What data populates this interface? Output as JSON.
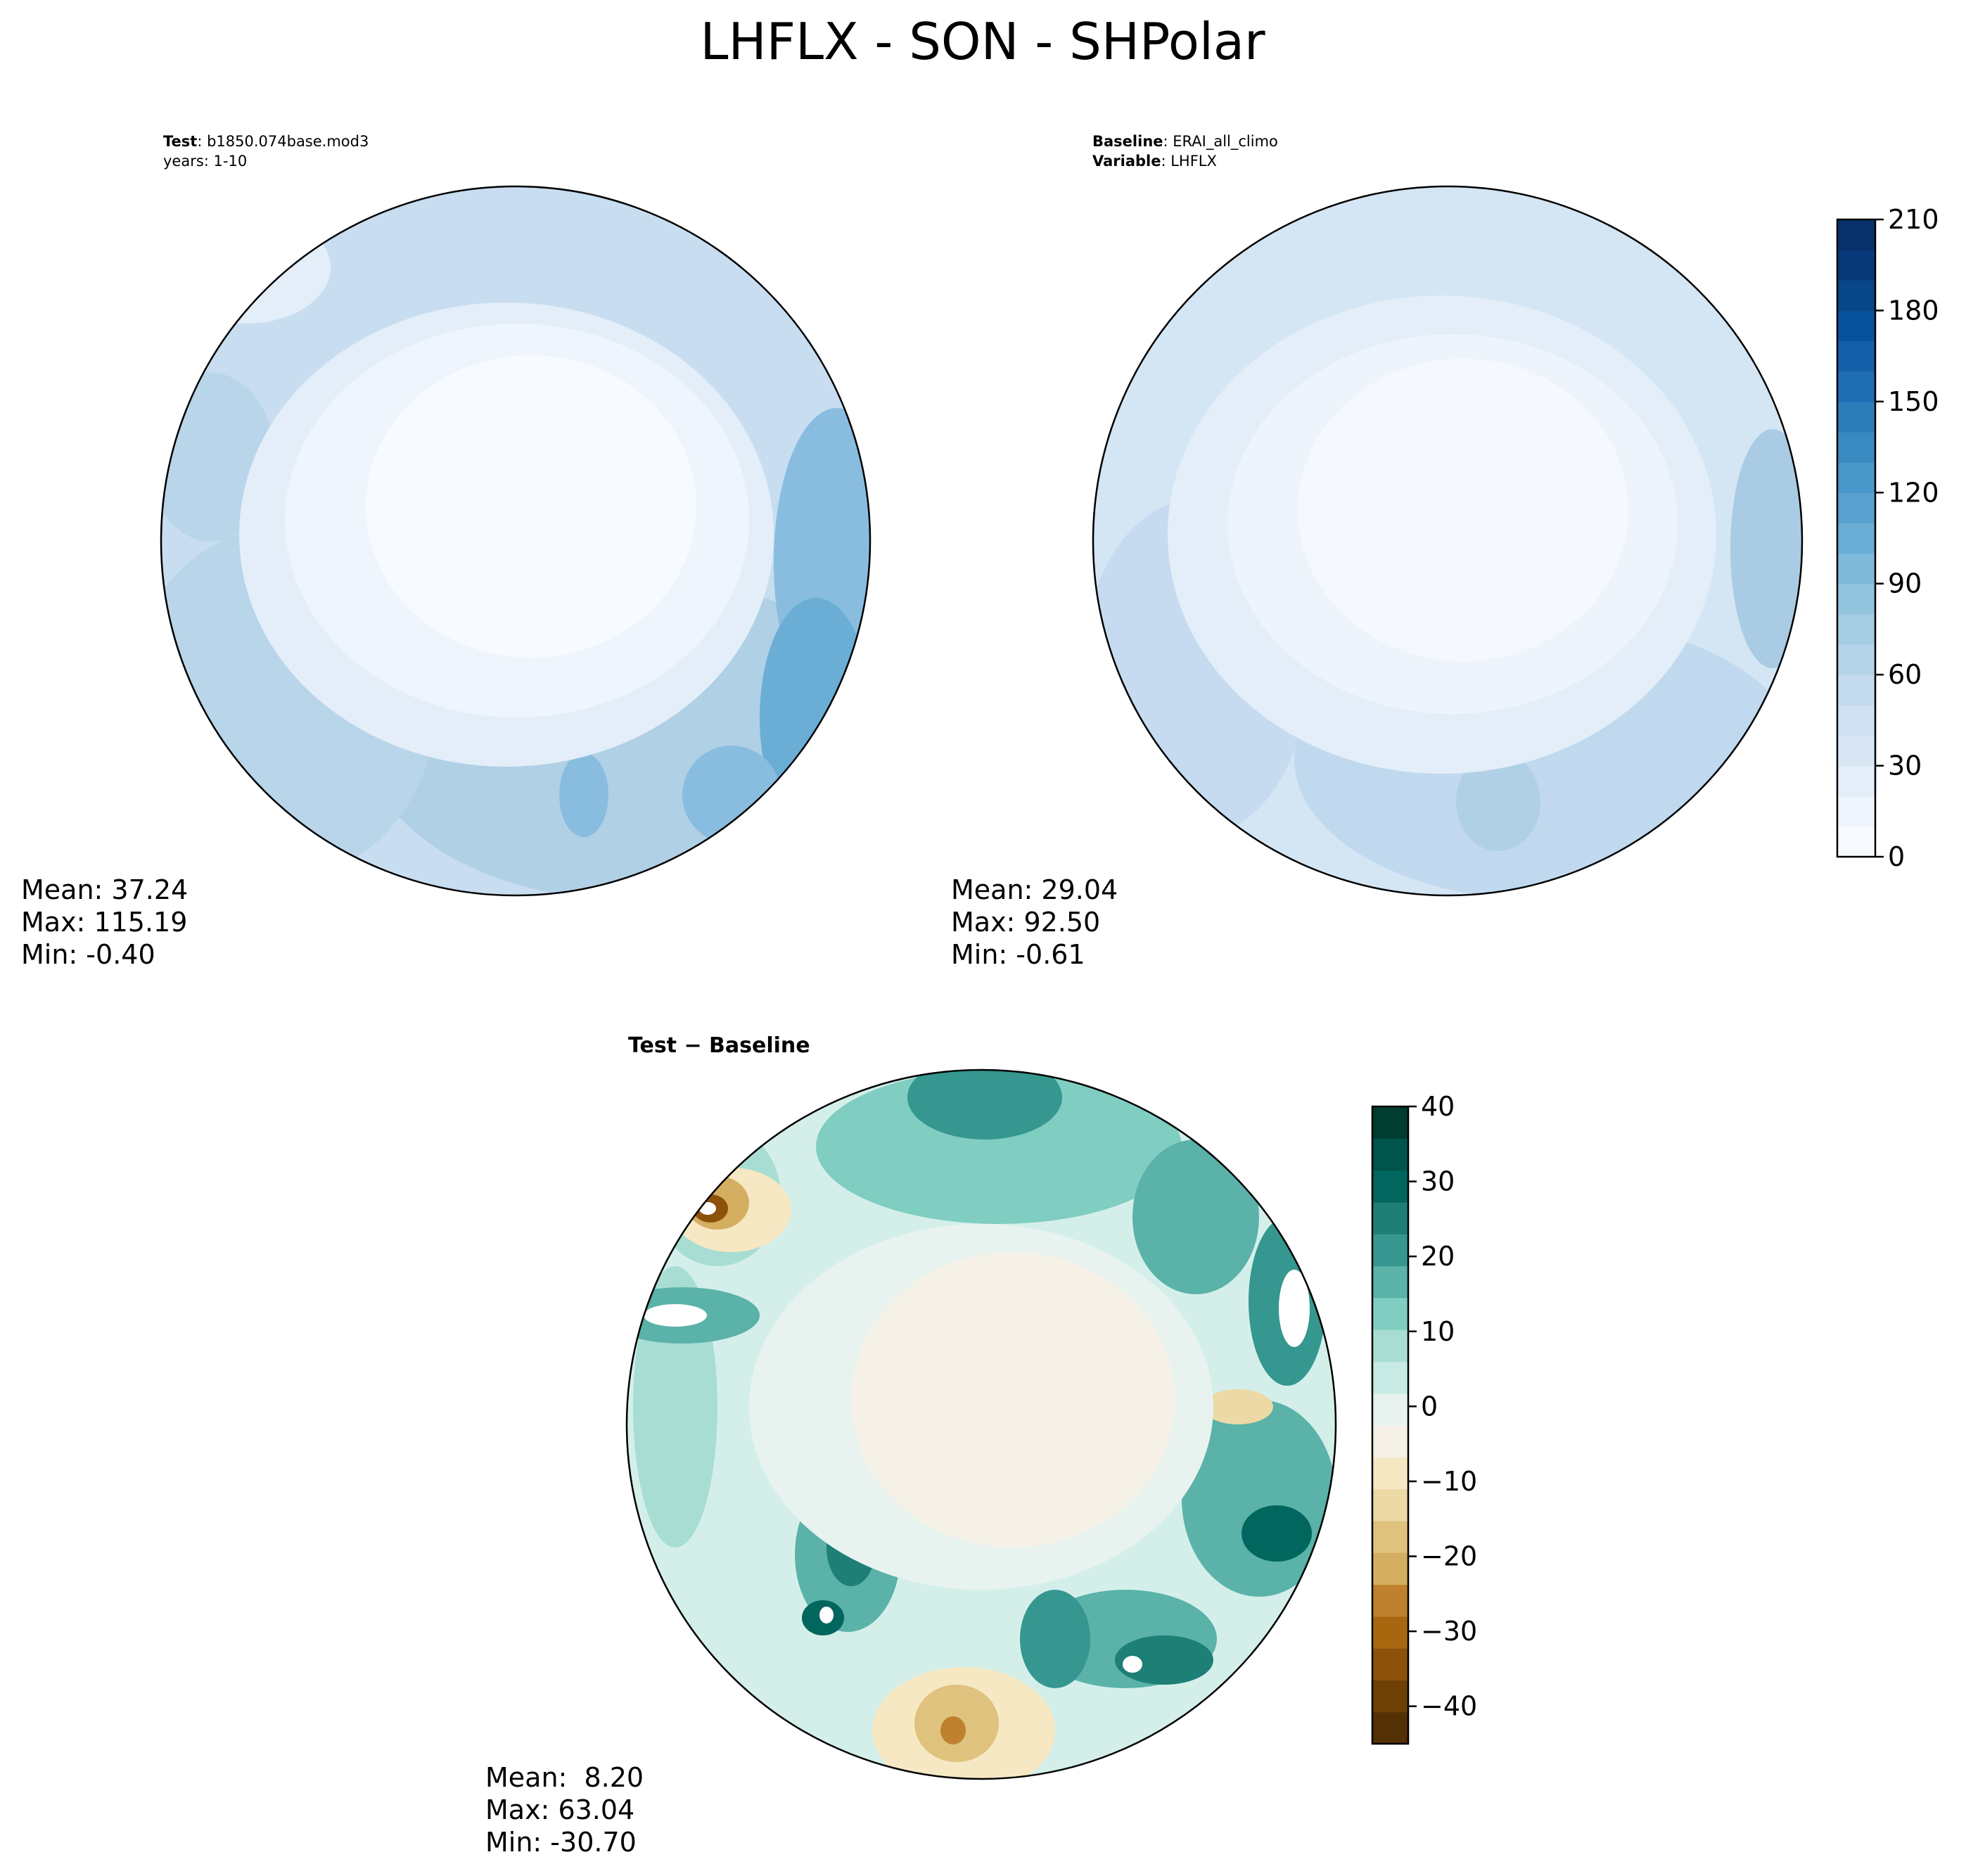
{
  "title": "LHFLX - SON - SHPolar",
  "panels": {
    "test": {
      "header_bold": "Test",
      "header_text": ": b1850.074base.mod3",
      "header_line2": "years: 1-10",
      "stats": {
        "mean": "Mean: 37.24",
        "max": "Max: 115.19",
        "min": "Min: -0.40"
      }
    },
    "baseline": {
      "header_bold": "Baseline",
      "header_text": ": ERAI_all_climo",
      "header_bold2": "Variable",
      "header_text2": ": LHFLX",
      "stats": {
        "mean": "Mean: 29.04",
        "max": "Max: 92.50",
        "min": "Min: -0.61"
      }
    },
    "diff": {
      "header_bold": "Test − Baseline",
      "stats": {
        "mean": "Mean:  8.20",
        "max": "Max: 63.04",
        "min": "Min: -30.70"
      }
    }
  },
  "chart_data": [
    {
      "type": "heatmap",
      "projection": "south polar stereographic",
      "title": "Test: b1850.074base.mod3",
      "colormap": "Blues",
      "colorbar": {
        "ticks": [
          "0",
          "30",
          "60",
          "90",
          "120",
          "150",
          "180",
          "210"
        ],
        "range": [
          0,
          210
        ],
        "levels": 21
      },
      "stats": {
        "mean": 37.24,
        "max": 115.19,
        "min": -0.4
      }
    },
    {
      "type": "heatmap",
      "projection": "south polar stereographic",
      "title": "Baseline: ERAI_all_climo",
      "colormap": "Blues",
      "colorbar": {
        "ticks": [
          "0",
          "30",
          "60",
          "90",
          "120",
          "150",
          "180",
          "210"
        ],
        "range": [
          0,
          210
        ],
        "levels": 21
      },
      "stats": {
        "mean": 29.04,
        "max": 92.5,
        "min": -0.61
      }
    },
    {
      "type": "heatmap",
      "projection": "south polar stereographic",
      "title": "Test − Baseline",
      "colormap": "BrBG",
      "colorbar": {
        "ticks": [
          "40",
          "30",
          "20",
          "10",
          "0",
          "−10",
          "−20",
          "−30",
          "−40"
        ],
        "range": [
          -45,
          40
        ],
        "levels": 17
      },
      "stats": {
        "mean": 8.2,
        "max": 63.04,
        "min": -30.7
      }
    }
  ],
  "colors": {
    "blues": [
      "#f7fbff",
      "#eef5fc",
      "#e3eef9",
      "#d9e7f5",
      "#cfe1f2",
      "#c4daee",
      "#b5d4e9",
      "#a5cce3",
      "#93c4de",
      "#7fb9da",
      "#6aaed6",
      "#59a1cf",
      "#4a97c9",
      "#3a8ac2",
      "#2c7cba",
      "#1f6eb3",
      "#1460a8",
      "#08529b",
      "#08468a",
      "#083a7a",
      "#08306b"
    ],
    "brbg": [
      "#543005",
      "#6e4006",
      "#8c510a",
      "#a8670f",
      "#bf812d",
      "#d4ae61",
      "#dfc27d",
      "#ecd9a5",
      "#f6e8c3",
      "#f5f1e6",
      "#e8f3f0",
      "#c7eae5",
      "#a8ddd4",
      "#80cdc1",
      "#5ab2a8",
      "#35978f",
      "#1d7f75",
      "#01665e",
      "#00544b",
      "#003c30"
    ]
  }
}
